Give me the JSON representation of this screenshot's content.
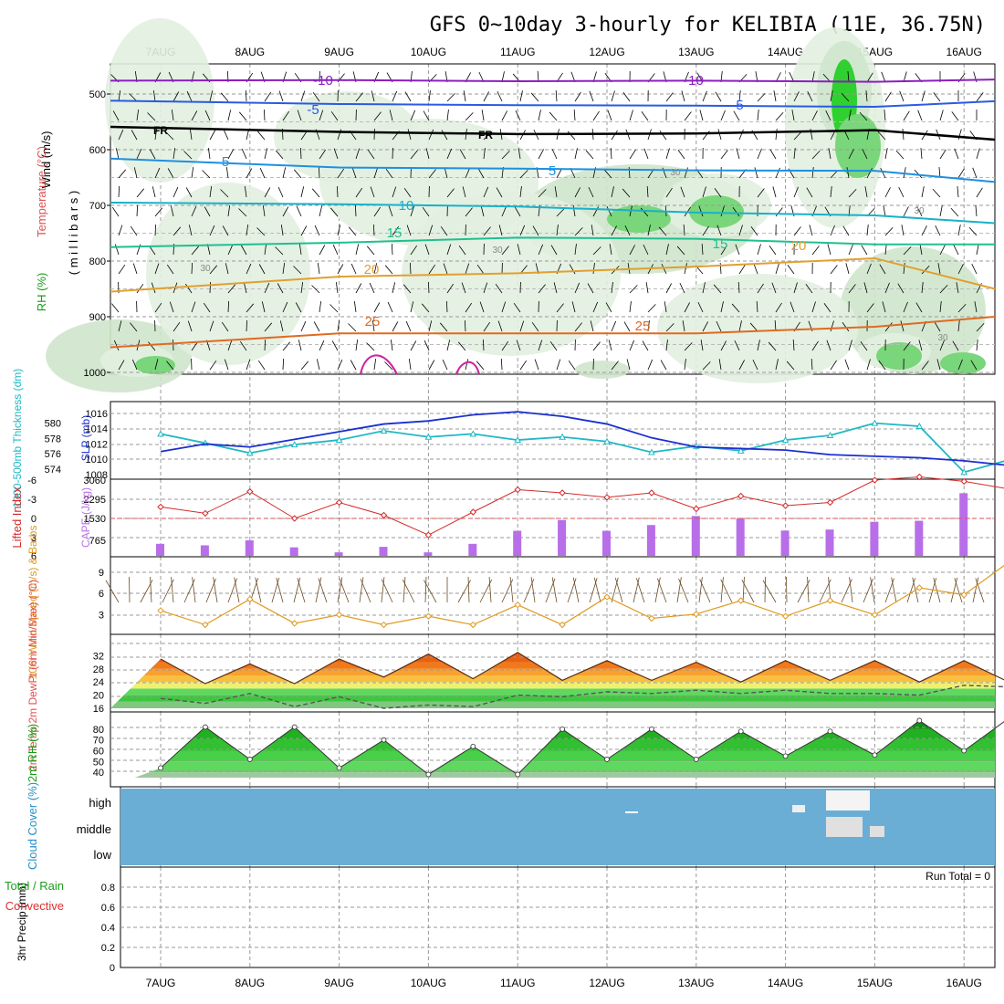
{
  "title": "GFS 0~10day 3-hourly for KELIBIA (11E, 36.75N)",
  "dates": [
    "7AUG",
    "8AUG",
    "9AUG",
    "10AUG",
    "11AUG",
    "12AUG",
    "13AUG",
    "14AUG",
    "15AUG",
    "16AUG"
  ],
  "colors": {
    "upper_rh": "#2cbf2c",
    "slp": "#1a2fd0",
    "thickness": "#20b8c4",
    "lifted_index": "#d42a2a",
    "cape": "#b86ee8",
    "wind_speed": "#e09a20",
    "barbs": "#6b4a22",
    "temp": "#e8701a",
    "dewpt": "#555555",
    "rh2m": "#22c022",
    "cloud_bg": "#6aaed6"
  },
  "chart_data": [
    {
      "type": "heatmap",
      "name": "upper_air",
      "ylabel_parts": [
        "RH (%)",
        "Temperature (°C)",
        "Wind (m/s)"
      ],
      "yunits": "( m i l l i b a r s )",
      "yticks": [
        "500",
        "600",
        "700",
        "800",
        "900",
        "1000"
      ],
      "ylim": [
        1000,
        460
      ],
      "isotherm_labels": [
        "-10",
        "-10",
        "-5",
        "-5",
        "FR",
        "FR",
        "5",
        "5",
        "10",
        "15",
        "15",
        "20",
        "20",
        "25",
        "25",
        "30",
        "30",
        "30",
        "30",
        "30"
      ],
      "isotherms": [
        {
          "label": "-10",
          "color": "#8a1fbf",
          "x": [
            0,
            2,
            4,
            6,
            8,
            10
          ],
          "y": [
            476,
            475,
            477,
            476,
            478,
            474
          ]
        },
        {
          "label": "-5",
          "color": "#2a5be0",
          "x": [
            0,
            2,
            4,
            6,
            8,
            10
          ],
          "y": [
            512,
            518,
            520,
            521,
            523,
            513
          ]
        },
        {
          "label": "FR",
          "color": "#000000",
          "x": [
            0,
            2,
            4,
            6,
            8,
            10
          ],
          "y": [
            559,
            568,
            572,
            571,
            565,
            582
          ]
        },
        {
          "label": "5",
          "color": "#1e90e0",
          "x": [
            0,
            2,
            4,
            6,
            8,
            10
          ],
          "y": [
            616,
            632,
            634,
            637,
            638,
            658
          ]
        },
        {
          "label": "10",
          "color": "#1ab0c8",
          "x": [
            0,
            2,
            4,
            6,
            8,
            10
          ],
          "y": [
            695,
            698,
            702,
            713,
            718,
            732
          ]
        },
        {
          "label": "15",
          "color": "#1fbf90",
          "x": [
            0,
            2,
            4,
            6,
            8,
            10
          ],
          "y": [
            775,
            767,
            758,
            760,
            770,
            770
          ]
        },
        {
          "label": "20",
          "color": "#e0a030",
          "x": [
            0,
            2,
            4,
            6,
            8,
            10
          ],
          "y": [
            855,
            828,
            822,
            810,
            795,
            850
          ]
        },
        {
          "label": "25",
          "color": "#e06a20",
          "x": [
            0,
            2,
            4,
            6,
            8,
            10
          ],
          "y": [
            955,
            930,
            930,
            930,
            918,
            900
          ]
        }
      ]
    },
    {
      "type": "line",
      "name": "slp_thickness",
      "ylabel_left": "1000-500mb Thickness (dm)",
      "ylabel_right": "SLP (mb)",
      "left_ticks": [
        "574",
        "576",
        "578",
        "580"
      ],
      "right_ticks": [
        "1008",
        "1010",
        "1012",
        "1014",
        "1016"
      ],
      "x_days": [
        0,
        0.5,
        1,
        1.5,
        2,
        2.5,
        3,
        3.5,
        4,
        4.5,
        5,
        5.5,
        6,
        6.5,
        7,
        7.5,
        8,
        8.5,
        9,
        9.5,
        10
      ],
      "series": [
        {
          "name": "SLP (mb)",
          "values": [
            1011.0,
            1012.0,
            1011.6,
            1012.6,
            1013.6,
            1014.6,
            1015.0,
            1015.8,
            1016.2,
            1015.6,
            1014.6,
            1012.8,
            1011.6,
            1011.4,
            1011.2,
            1010.6,
            1010.4,
            1010.2,
            1009.8,
            1009.2,
            1010.8
          ]
        },
        {
          "name": "Thickness (dm)",
          "values": [
            578.6,
            577.4,
            576.1,
            577.2,
            577.8,
            579.0,
            578.2,
            578.6,
            577.8,
            578.2,
            577.6,
            576.2,
            577.0,
            576.4,
            577.8,
            578.4,
            580.0,
            579.6,
            573.6,
            575.2,
            575.2
          ]
        }
      ]
    },
    {
      "type": "bar",
      "name": "cape_lifted_index",
      "ylabel_left": "Lifted Index",
      "ylabel_right": "CAPE (J/kg)",
      "li_ticks": [
        "-6",
        "-3",
        "0",
        "3",
        "6"
      ],
      "cape_ticks": [
        "765",
        "1530",
        "2295",
        "3060"
      ],
      "x_days": [
        0,
        0.5,
        1,
        1.5,
        2,
        2.5,
        3,
        3.5,
        4,
        4.5,
        5,
        5.5,
        6,
        6.5,
        7,
        7.5,
        8,
        8.5,
        9,
        9.5,
        10
      ],
      "cape_values": [
        480,
        420,
        620,
        340,
        140,
        360,
        140,
        480,
        1000,
        1430,
        1000,
        1230,
        1590,
        1480,
        1010,
        1050,
        1360,
        1400,
        2500,
        1850,
        1350
      ],
      "lifted_index": [
        -1.8,
        -0.8,
        -4.2,
        0.0,
        -2.5,
        -0.5,
        2.6,
        -1.0,
        -4.5,
        -4.0,
        -3.3,
        -4.0,
        -1.5,
        -3.5,
        -2.0,
        -2.5,
        -6.0,
        -6.5,
        -5.8,
        -4.6,
        -3.2
      ]
    },
    {
      "type": "line",
      "name": "wind10m",
      "ylabel": "10m Wind Speed (m/s) & Barbs",
      "yticks": [
        "3",
        "6",
        "9"
      ],
      "x_days": [
        0,
        0.5,
        1,
        1.5,
        2,
        2.5,
        3,
        3.5,
        4,
        4.5,
        5,
        5.5,
        6,
        6.5,
        7,
        7.5,
        8,
        8.5,
        9,
        9.5,
        10
      ],
      "values": [
        3.6,
        1.6,
        5.2,
        1.8,
        3.0,
        1.6,
        2.8,
        1.6,
        4.4,
        1.6,
        5.5,
        2.5,
        3.1,
        5.0,
        2.8,
        5.0,
        3.0,
        6.8,
        5.8,
        10.4,
        6.0
      ]
    },
    {
      "type": "area",
      "name": "temp2m",
      "ylabel": "2m Temp 2m DewPt (6hr Min/Max) (°C)",
      "yticks": [
        "16",
        "20",
        "24",
        "28",
        "32"
      ],
      "x_days": [
        0,
        0.5,
        1,
        1.5,
        2,
        2.5,
        3,
        3.5,
        4,
        4.5,
        5,
        5.5,
        6,
        6.5,
        7,
        7.5,
        8,
        8.5,
        9,
        9.5,
        10
      ],
      "temp": [
        31.0,
        23.5,
        29.5,
        23.5,
        31.0,
        25.5,
        32.5,
        25.0,
        33.0,
        24.5,
        30.5,
        24.5,
        30.0,
        24.0,
        30.5,
        24.5,
        30.5,
        24.0,
        30.5,
        24.0,
        27.0
      ],
      "dewpt": [
        19.0,
        17.5,
        20.5,
        16.5,
        19.5,
        16.0,
        17.0,
        16.5,
        20.0,
        19.5,
        21.0,
        20.5,
        21.5,
        20.5,
        21.5,
        20.5,
        20.5,
        20.0,
        23.0,
        22.5,
        22.0
      ]
    },
    {
      "type": "area",
      "name": "rh2m",
      "ylabel": "2m RH (%)",
      "yticks": [
        "40",
        "50",
        "60",
        "70",
        "80"
      ],
      "x_days": [
        0,
        0.5,
        1,
        1.5,
        2,
        2.5,
        3,
        3.5,
        4,
        4.5,
        5,
        5.5,
        6,
        6.5,
        7,
        7.5,
        8,
        8.5,
        9,
        9.5,
        10
      ],
      "values": [
        44,
        82,
        52,
        82,
        44,
        70,
        38,
        64,
        38,
        80,
        52,
        80,
        52,
        78,
        55,
        78,
        56,
        88,
        60,
        90,
        62
      ]
    },
    {
      "type": "heatmap",
      "name": "cloud_cover",
      "ylabel": "Cloud Cover (%)",
      "levels": [
        "high",
        "middle",
        "low"
      ],
      "notes": "sparse cloud at middle/high levels around 14-15AUG"
    },
    {
      "type": "bar",
      "name": "precip",
      "ylabel_parts": [
        "Total / Rain",
        "Convective"
      ],
      "ylabel_units": "3hr Precip (mm)",
      "yticks": [
        "0",
        "0.2",
        "0.4",
        "0.6",
        "0.8"
      ],
      "ylim": [
        0,
        0.9
      ],
      "run_total": "Run Total = 0",
      "values": []
    }
  ]
}
